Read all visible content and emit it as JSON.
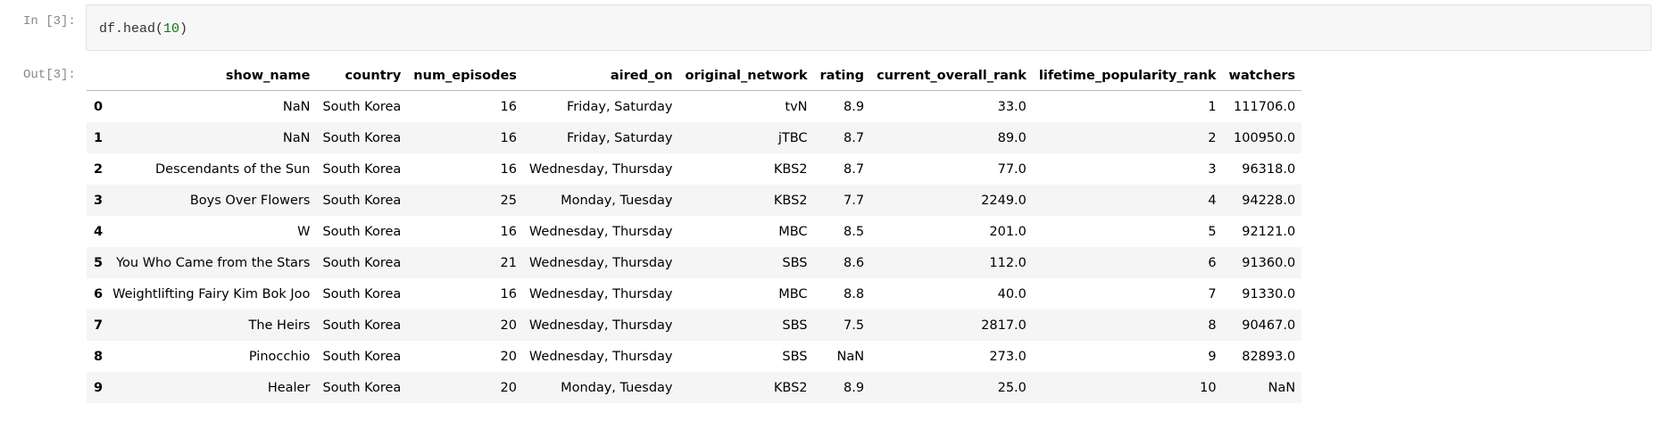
{
  "cell_in": {
    "prompt": "In [3]:",
    "code_prefix": "df.head(",
    "code_number": "10",
    "code_suffix": ")"
  },
  "cell_out": {
    "prompt": "Out[3]:"
  },
  "table": {
    "index_header": "",
    "columns": [
      "show_name",
      "country",
      "num_episodes",
      "aired_on",
      "original_network",
      "rating",
      "current_overall_rank",
      "lifetime_popularity_rank",
      "watchers"
    ],
    "rows": [
      {
        "index": "0",
        "cells": [
          "NaN",
          "South Korea",
          "16",
          "Friday, Saturday",
          "tvN",
          "8.9",
          "33.0",
          "1",
          "111706.0"
        ]
      },
      {
        "index": "1",
        "cells": [
          "NaN",
          "South Korea",
          "16",
          "Friday, Saturday",
          "jTBC",
          "8.7",
          "89.0",
          "2",
          "100950.0"
        ]
      },
      {
        "index": "2",
        "cells": [
          "Descendants of the Sun",
          "South Korea",
          "16",
          "Wednesday, Thursday",
          "KBS2",
          "8.7",
          "77.0",
          "3",
          "96318.0"
        ]
      },
      {
        "index": "3",
        "cells": [
          "Boys Over Flowers",
          "South Korea",
          "25",
          "Monday, Tuesday",
          "KBS2",
          "7.7",
          "2249.0",
          "4",
          "94228.0"
        ]
      },
      {
        "index": "4",
        "cells": [
          "W",
          "South Korea",
          "16",
          "Wednesday, Thursday",
          "MBC",
          "8.5",
          "201.0",
          "5",
          "92121.0"
        ]
      },
      {
        "index": "5",
        "cells": [
          "You Who Came from the Stars",
          "South Korea",
          "21",
          "Wednesday, Thursday",
          "SBS",
          "8.6",
          "112.0",
          "6",
          "91360.0"
        ]
      },
      {
        "index": "6",
        "cells": [
          "Weightlifting Fairy Kim Bok Joo",
          "South Korea",
          "16",
          "Wednesday, Thursday",
          "MBC",
          "8.8",
          "40.0",
          "7",
          "91330.0"
        ]
      },
      {
        "index": "7",
        "cells": [
          "The Heirs",
          "South Korea",
          "20",
          "Wednesday, Thursday",
          "SBS",
          "7.5",
          "2817.0",
          "8",
          "90467.0"
        ]
      },
      {
        "index": "8",
        "cells": [
          "Pinocchio",
          "South Korea",
          "20",
          "Wednesday, Thursday",
          "SBS",
          "NaN",
          "273.0",
          "9",
          "82893.0"
        ]
      },
      {
        "index": "9",
        "cells": [
          "Healer",
          "South Korea",
          "20",
          "Monday, Tuesday",
          "KBS2",
          "8.9",
          "25.0",
          "10",
          "NaN"
        ]
      }
    ]
  }
}
